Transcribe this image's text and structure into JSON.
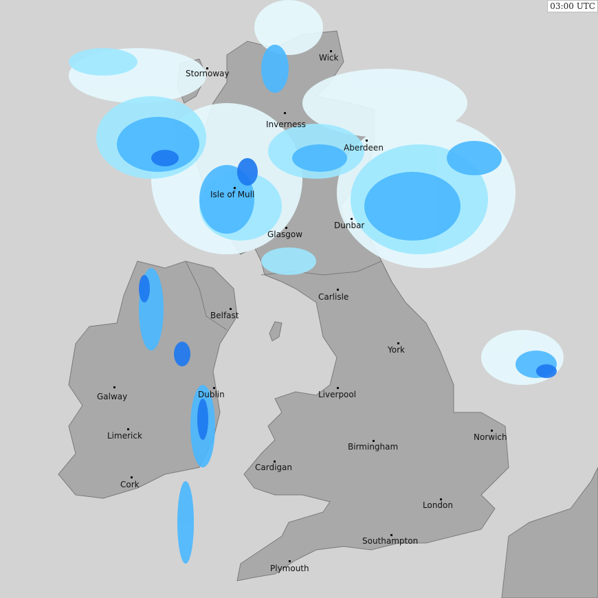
{
  "timestamp": "03:00 UTC",
  "colors": {
    "sea": "#d3d3d3",
    "land": "#a9a9a9",
    "border": "#7a7a7a",
    "rain_very_light": "#e6faff",
    "rain_light": "#9de8ff",
    "rain_moderate": "#4ab8ff",
    "rain_heavy": "#1c78f0"
  },
  "cities": [
    {
      "name": "Stornoway"
    },
    {
      "name": "Wick"
    },
    {
      "name": "Inverness"
    },
    {
      "name": "Aberdeen"
    },
    {
      "name": "Isle of Mull"
    },
    {
      "name": "Dunbar"
    },
    {
      "name": "Glasgow"
    },
    {
      "name": "Belfast"
    },
    {
      "name": "Carlisle"
    },
    {
      "name": "York"
    },
    {
      "name": "Galway"
    },
    {
      "name": "Dublin"
    },
    {
      "name": "Liverpool"
    },
    {
      "name": "Limerick"
    },
    {
      "name": "Norwich"
    },
    {
      "name": "Birmingham"
    },
    {
      "name": "Cardigan"
    },
    {
      "name": "Cork"
    },
    {
      "name": "London"
    },
    {
      "name": "Southampton"
    },
    {
      "name": "Plymouth"
    }
  ]
}
